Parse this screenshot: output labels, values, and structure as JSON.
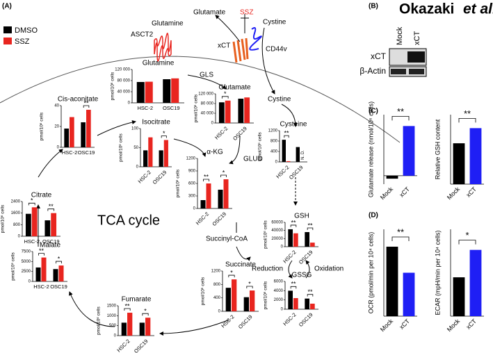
{
  "panel_labels": {
    "a": "(A)",
    "b": "(B)",
    "c": "(C)",
    "d": "(D)"
  },
  "author": {
    "name": "Okazaki",
    "etal": "et al."
  },
  "legend": [
    {
      "name": "DMSO",
      "color": "#000000"
    },
    {
      "name": "SSZ",
      "color": "#e8251f"
    }
  ],
  "diagram": {
    "glutamate": "Glutamate",
    "ssz": "SSZ",
    "cystine_out": "Cystine",
    "glutamine_out": "Glutamine",
    "asct2": "ASCT2",
    "xct": "xCT",
    "cd44v": "CD44v",
    "gls": "GLS",
    "cystine_in": "Cystine",
    "glud": "GLUD",
    "tca": "TCA cycle",
    "succinyl": "Succinyl-CoA",
    "reduction": "Reduction",
    "oxidation": "Oxidation"
  },
  "blot": {
    "lanes": [
      "Mock",
      "xCT"
    ],
    "rows": [
      "xCT",
      "β-Actin"
    ]
  },
  "chart_data": [
    {
      "type": "bar",
      "title": "Glutamine",
      "ylabel": "pmol/10⁶ cells",
      "categories": [
        "HSC-2",
        "OSC19"
      ],
      "series": [
        {
          "values": [
            75000,
            85000
          ]
        },
        {
          "values": [
            76000,
            88000
          ]
        }
      ],
      "ylim": [
        0,
        120000
      ],
      "yticks": [
        0,
        {
          "value": 40000,
          "label": "40 000"
        },
        {
          "value": 80000,
          "label": "80 000"
        },
        {
          "value": 120000,
          "label": "120 000"
        }
      ],
      "significance": [
        null,
        null
      ]
    },
    {
      "type": "bar",
      "title": "Glutamate",
      "ylabel": "pmol/10⁶ cells",
      "categories": [
        "HSC-2",
        "OSC19"
      ],
      "series": [
        {
          "values": [
            85000,
            100000
          ]
        },
        {
          "values": [
            92000,
            105000
          ]
        }
      ],
      "ylim": [
        0,
        120000
      ],
      "yticks": [
        0,
        {
          "value": 40000,
          "label": "40 000"
        },
        {
          "value": 80000,
          "label": "80 000"
        },
        {
          "value": 120000,
          "label": "120 000"
        }
      ],
      "significance": [
        "*",
        null
      ]
    },
    {
      "type": "bar",
      "title": "Cysteine",
      "ylabel": "pmol/10⁶ cells",
      "categories": [
        "HSC-2",
        "OSC19"
      ],
      "series": [
        {
          "values": [
            850,
            570
          ]
        },
        {
          "values": [
            30,
            null
          ],
          "value_labels": [
            null,
            "N. D."
          ]
        }
      ],
      "ylim": [
        0,
        1200
      ],
      "yticks": [
        0,
        400,
        800,
        1200
      ],
      "significance": [
        "**",
        null
      ]
    },
    {
      "type": "bar",
      "title": "Cis-aconitate",
      "ylabel": "pmol/10⁶ cells",
      "categories": [
        "HSC-2",
        "OSC19"
      ],
      "series": [
        {
          "values": [
            18,
            24
          ]
        },
        {
          "values": [
            29,
            36
          ]
        }
      ],
      "ylim": [
        0,
        40
      ],
      "yticks": [
        0,
        20,
        40
      ],
      "significance": [
        null,
        "**"
      ]
    },
    {
      "type": "bar",
      "title": "Isocitrate",
      "ylabel": "pmol/10⁶ cells",
      "categories": [
        "HSC-2",
        "OSC19"
      ],
      "series": [
        {
          "values": [
            43,
            43
          ]
        },
        {
          "values": [
            77,
            70
          ]
        }
      ],
      "ylim": [
        0,
        100
      ],
      "yticks": [
        0,
        50,
        100
      ],
      "significance": [
        null,
        "*"
      ]
    },
    {
      "type": "bar",
      "title": "Citrate",
      "ylabel": "pmol/10⁶ cells",
      "categories": [
        "HSC-2",
        "OSC19"
      ],
      "series": [
        {
          "values": [
            1550,
            1100
          ]
        },
        {
          "values": [
            2000,
            1600
          ]
        }
      ],
      "ylim": [
        0,
        2400
      ],
      "yticks": [
        0,
        800,
        1600,
        2400
      ],
      "significance": [
        "*",
        "**"
      ]
    },
    {
      "type": "bar",
      "title": "α-KG",
      "ylabel": "pmol/10⁶ cells",
      "categories": [
        "HSC-2",
        "OSC19"
      ],
      "series": [
        {
          "values": [
            200,
            450
          ]
        },
        {
          "values": [
            600,
            700
          ]
        }
      ],
      "ylim": [
        0,
        1200
      ],
      "yticks": [
        0,
        300,
        600,
        900,
        1200
      ],
      "significance": [
        "**",
        "*"
      ]
    },
    {
      "type": "bar",
      "title": "GSH",
      "ylabel": "pmol/10⁶ cells",
      "categories": [
        "HSC-2",
        "OSC19"
      ],
      "series": [
        {
          "values": [
            43000,
            36000
          ]
        },
        {
          "values": [
            33000,
            10000
          ]
        }
      ],
      "ylim": [
        0,
        60000
      ],
      "yticks": [
        0,
        20000,
        40000,
        60000
      ],
      "significance": [
        "**",
        "**"
      ]
    },
    {
      "type": "bar",
      "title": "GSSG",
      "ylabel": "pmol/10⁶ cells",
      "categories": [
        "HSC-2",
        "OSC19"
      ],
      "series": [
        {
          "values": [
            4000,
            2300
          ]
        },
        {
          "values": [
            2400,
            1200
          ]
        }
      ],
      "ylim": [
        0,
        6000
      ],
      "yticks": [
        0,
        2000,
        4000,
        6000
      ],
      "significance": [
        "**",
        "**"
      ]
    },
    {
      "type": "bar",
      "title": "Malate",
      "ylabel": "pmol/10⁶ cells",
      "categories": [
        "HSC-2",
        "OSC19"
      ],
      "series": [
        {
          "values": [
            3500,
            3100
          ]
        },
        {
          "values": [
            6000,
            4000
          ]
        }
      ],
      "ylim": [
        0,
        7500
      ],
      "yticks": [
        0,
        2500,
        5000,
        7500
      ],
      "significance": [
        "**",
        "*"
      ]
    },
    {
      "type": "bar",
      "title": "Fumarate",
      "ylabel": "pmol/10⁶ cells",
      "categories": [
        "HSC-2",
        "OSC19"
      ],
      "series": [
        {
          "values": [
            650,
            650
          ]
        },
        {
          "values": [
            1150,
            900
          ]
        }
      ],
      "ylim": [
        0,
        1500
      ],
      "yticks": [
        0,
        500,
        1000,
        1500
      ],
      "significance": [
        "**",
        "*"
      ]
    },
    {
      "type": "bar",
      "title": "Succinate",
      "ylabel": "pmol/10⁶ cells",
      "categories": [
        "HSC-2",
        "OSC19"
      ],
      "series": [
        {
          "values": [
            700,
            420
          ]
        },
        {
          "values": [
            950,
            620
          ]
        }
      ],
      "ylim": [
        0,
        1200
      ],
      "yticks": [
        0,
        400,
        800,
        1200
      ],
      "significance": [
        "*",
        "*"
      ]
    },
    {
      "type": "pair",
      "ylabel": "Glutamate release (nmol/10⁶ cells)",
      "categories": [
        "Mock",
        "xCT"
      ],
      "values": [
        -0.07,
        1.18
      ],
      "colors": [
        "#000000",
        "#1f1ff5"
      ],
      "ylim": [
        -0.2,
        1.45
      ],
      "significance": "**"
    },
    {
      "type": "pair",
      "ylabel": "Relative GSH content",
      "categories": [
        "Mock",
        "xCT"
      ],
      "values": [
        1.0,
        1.37
      ],
      "colors": [
        "#000000",
        "#1f1ff5"
      ],
      "ylim": [
        0,
        1.7
      ],
      "significance": "**"
    },
    {
      "type": "pair",
      "ylabel": "OCR (pmol/min per 10⁴ cells)",
      "categories": [
        "Mock",
        "xCT"
      ],
      "values": [
        72,
        45
      ],
      "colors": [
        "#000000",
        "#1f1ff5"
      ],
      "ylim": [
        0,
        90
      ],
      "significance": "**"
    },
    {
      "type": "pair",
      "ylabel": "ECAR (mpH/min per 10⁴ cells)",
      "categories": [
        "Mock",
        "xCT"
      ],
      "values": [
        8.5,
        14.5
      ],
      "colors": [
        "#000000",
        "#1f1ff5"
      ],
      "ylim": [
        0,
        19
      ],
      "significance": "*"
    }
  ]
}
